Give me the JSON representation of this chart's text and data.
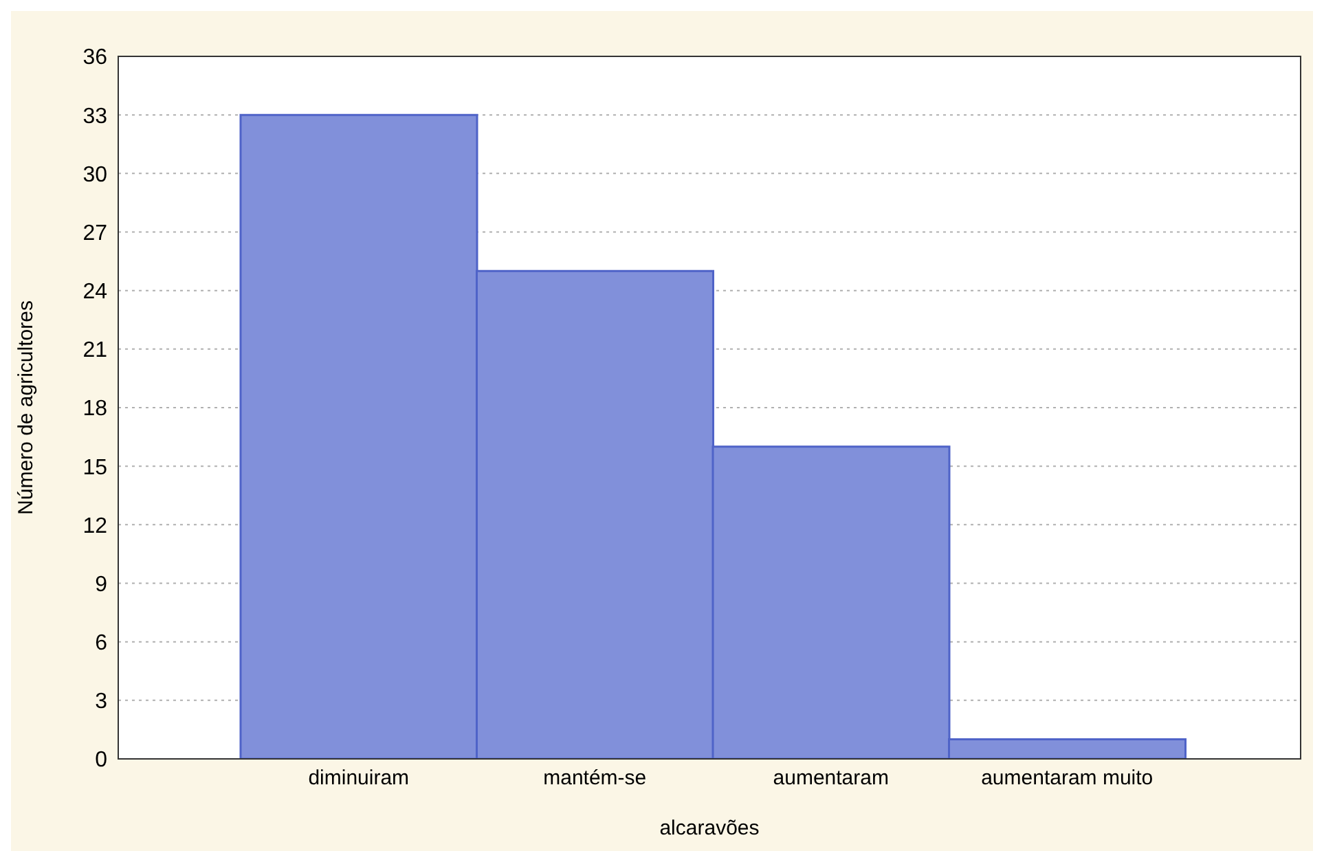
{
  "chart_data": {
    "type": "bar",
    "xlabel": "alcaravões",
    "ylabel": "Número de agricultores",
    "categories": [
      "diminuiram",
      "mantém-se",
      "aumentaram",
      "aumentaram muito"
    ],
    "values": [
      33,
      25,
      16,
      1
    ],
    "color": "#8190da",
    "ylim": [
      0,
      36
    ],
    "yticks": [
      0,
      3,
      6,
      9,
      12,
      15,
      18,
      21,
      24,
      27,
      30,
      33,
      36
    ],
    "grid": "y"
  }
}
